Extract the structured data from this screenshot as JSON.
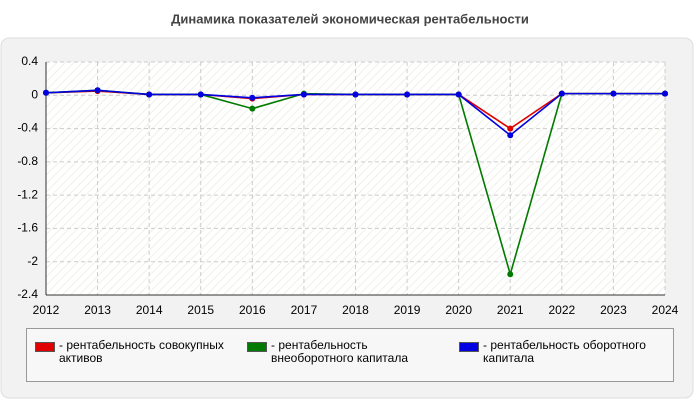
{
  "chart_data": {
    "type": "line",
    "title": "Динамика показателей экономическая рентабельности",
    "x": [
      2012,
      2013,
      2014,
      2015,
      2016,
      2017,
      2018,
      2019,
      2020,
      2021,
      2022,
      2023,
      2024
    ],
    "xlim": [
      2012,
      2024
    ],
    "xticks": [
      2012,
      2013,
      2014,
      2015,
      2016,
      2017,
      2018,
      2019,
      2020,
      2021,
      2022,
      2023,
      2024
    ],
    "ylim": [
      -2.4,
      0.4
    ],
    "yticks": [
      0.4,
      0,
      -0.4,
      -0.8,
      -1.2,
      -1.6,
      -2,
      -2.4
    ],
    "grid": true,
    "series": [
      {
        "name": "рентабельность совокупных активов",
        "color": "#e00000",
        "values": [
          0.03,
          0.05,
          0.01,
          0.01,
          -0.04,
          0.01,
          0.01,
          0.01,
          0.01,
          -0.4,
          0.02,
          0.02,
          0.02
        ]
      },
      {
        "name": "рентабельность внеоборотного капитала",
        "color": "#007a00",
        "values": [
          0.03,
          0.06,
          0.01,
          0.01,
          -0.16,
          0.02,
          0.01,
          0.01,
          0.01,
          -2.15,
          0.02,
          0.02,
          0.02
        ]
      },
      {
        "name": "рентабельность оборотного капитала",
        "color": "#0000e0",
        "values": [
          0.03,
          0.06,
          0.01,
          0.01,
          -0.03,
          0.01,
          0.01,
          0.01,
          0.01,
          -0.48,
          0.02,
          0.02,
          0.02
        ]
      }
    ]
  }
}
